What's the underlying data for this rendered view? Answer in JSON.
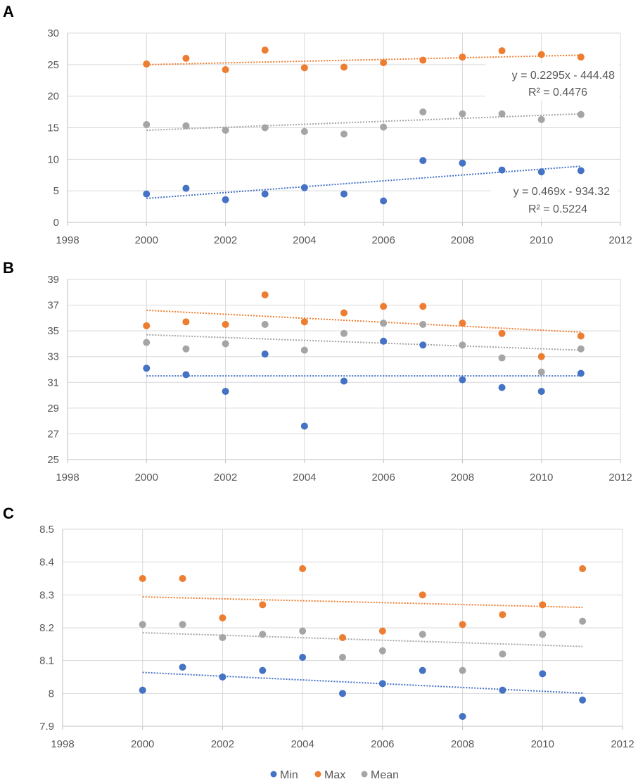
{
  "chart_data": [
    {
      "type": "scatter",
      "panel_label": "A",
      "xlim": [
        1998,
        2012
      ],
      "xticks": [
        1998,
        2000,
        2002,
        2004,
        2006,
        2008,
        2010,
        2012
      ],
      "ylim": [
        0,
        30
      ],
      "yticks": [
        0,
        5,
        10,
        15,
        20,
        25,
        30
      ],
      "x": [
        2000,
        2001,
        2002,
        2003,
        2004,
        2005,
        2006,
        2007,
        2008,
        2009,
        2010,
        2011
      ],
      "series": [
        {
          "name": "Min",
          "color": "#4472C4",
          "values": [
            4.5,
            5.4,
            3.6,
            4.5,
            5.5,
            4.5,
            3.4,
            9.8,
            9.4,
            8.3,
            8.0,
            8.2
          ],
          "trend": [
            3.8,
            8.9
          ]
        },
        {
          "name": "Max",
          "color": "#ED7D31",
          "values": [
            25.1,
            26.0,
            24.2,
            27.3,
            24.5,
            24.6,
            25.3,
            25.7,
            26.2,
            27.2,
            26.6,
            26.2
          ],
          "trend": [
            25.0,
            26.5
          ]
        },
        {
          "name": "Mean",
          "color": "#A5A5A5",
          "values": [
            15.5,
            15.3,
            14.6,
            15.0,
            14.4,
            14.0,
            15.1,
            17.5,
            17.2,
            17.2,
            16.3,
            17.1
          ],
          "trend": [
            14.6,
            17.2
          ]
        }
      ],
      "annotations": [
        {
          "line1": "y = 0.2295x - 444.48",
          "line2": "R² = 0.4476"
        },
        {
          "line1": "y = 0.469x - 934.32",
          "line2": "R² = 0.5224"
        }
      ]
    },
    {
      "type": "scatter",
      "panel_label": "B",
      "xlim": [
        1998,
        2012
      ],
      "xticks": [
        1998,
        2000,
        2002,
        2004,
        2006,
        2008,
        2010,
        2012
      ],
      "ylim": [
        25,
        39
      ],
      "yticks": [
        25,
        27,
        29,
        31,
        33,
        35,
        37,
        39
      ],
      "x": [
        2000,
        2001,
        2002,
        2003,
        2004,
        2005,
        2006,
        2007,
        2008,
        2009,
        2010,
        2011
      ],
      "series": [
        {
          "name": "Min",
          "color": "#4472C4",
          "values": [
            32.1,
            31.6,
            30.3,
            33.2,
            27.6,
            31.1,
            34.2,
            33.9,
            31.2,
            30.6,
            30.3,
            31.7
          ],
          "trend": [
            31.5,
            31.5
          ]
        },
        {
          "name": "Max",
          "color": "#ED7D31",
          "values": [
            35.4,
            35.7,
            35.5,
            37.8,
            35.7,
            36.4,
            36.9,
            36.9,
            35.6,
            34.8,
            33.0,
            34.6
          ],
          "trend": [
            36.6,
            34.9
          ]
        },
        {
          "name": "Mean",
          "color": "#A5A5A5",
          "values": [
            34.1,
            33.6,
            34.0,
            35.5,
            33.5,
            34.8,
            35.6,
            35.5,
            33.9,
            32.9,
            31.8,
            33.6
          ],
          "trend": [
            34.7,
            33.5
          ]
        }
      ],
      "annotations": []
    },
    {
      "type": "scatter",
      "panel_label": "C",
      "xlim": [
        1998,
        2012
      ],
      "xticks": [
        1998,
        2000,
        2002,
        2004,
        2006,
        2008,
        2010,
        2012
      ],
      "ylim": [
        7.9,
        8.5
      ],
      "yticks": [
        "7.9",
        "8",
        "8.1",
        "8.2",
        "8.3",
        "8.4",
        "8.5"
      ],
      "x": [
        2000,
        2001,
        2002,
        2003,
        2004,
        2005,
        2006,
        2007,
        2008,
        2009,
        2010,
        2011
      ],
      "series": [
        {
          "name": "Min",
          "color": "#4472C4",
          "values": [
            8.01,
            8.08,
            8.05,
            8.07,
            8.11,
            8.0,
            8.03,
            8.07,
            7.93,
            8.01,
            8.06,
            7.98
          ],
          "trend": [
            8.064,
            8.001
          ]
        },
        {
          "name": "Max",
          "color": "#ED7D31",
          "values": [
            8.35,
            8.35,
            8.23,
            8.27,
            8.38,
            8.17,
            8.19,
            8.3,
            8.21,
            8.24,
            8.27,
            8.38
          ],
          "trend": [
            8.294,
            8.262
          ]
        },
        {
          "name": "Mean",
          "color": "#A5A5A5",
          "values": [
            8.21,
            8.21,
            8.17,
            8.18,
            8.19,
            8.11,
            8.13,
            8.18,
            8.07,
            8.12,
            8.18,
            8.22
          ],
          "trend": [
            8.185,
            8.143
          ]
        }
      ],
      "annotations": []
    }
  ],
  "legend": [
    {
      "name": "Min",
      "color": "#4472C4"
    },
    {
      "name": "Max",
      "color": "#ED7D31"
    },
    {
      "name": "Mean",
      "color": "#A5A5A5"
    }
  ]
}
